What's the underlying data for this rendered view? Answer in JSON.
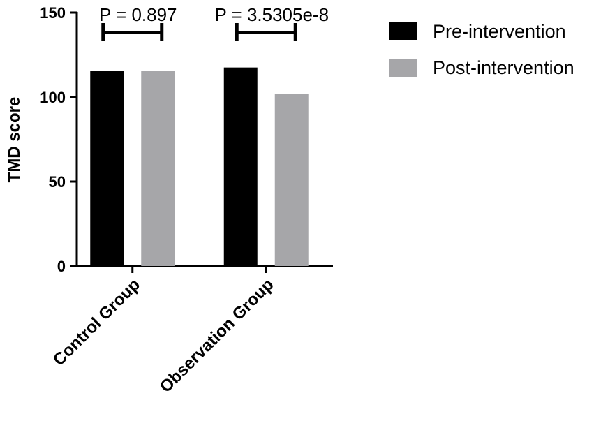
{
  "chart_data": {
    "type": "bar",
    "categories": [
      "Control Group",
      "Observation Group"
    ],
    "series": [
      {
        "name": "Pre-intervention",
        "values": [
          115.5,
          117.5
        ],
        "color": "#000000"
      },
      {
        "name": "Post-intervention",
        "values": [
          115.5,
          102
        ],
        "color": "#a6a6a9"
      }
    ],
    "ylabel": "TMD score",
    "xlabel": "",
    "ylim": [
      0,
      150
    ],
    "yticks": [
      0,
      50,
      100,
      150
    ],
    "annotations": [
      {
        "category": "Control Group",
        "text": "P = 0.897"
      },
      {
        "category": "Observation Group",
        "text": "P = 3.5305e-8"
      }
    ],
    "legend_position": "top-right",
    "grid": false
  }
}
